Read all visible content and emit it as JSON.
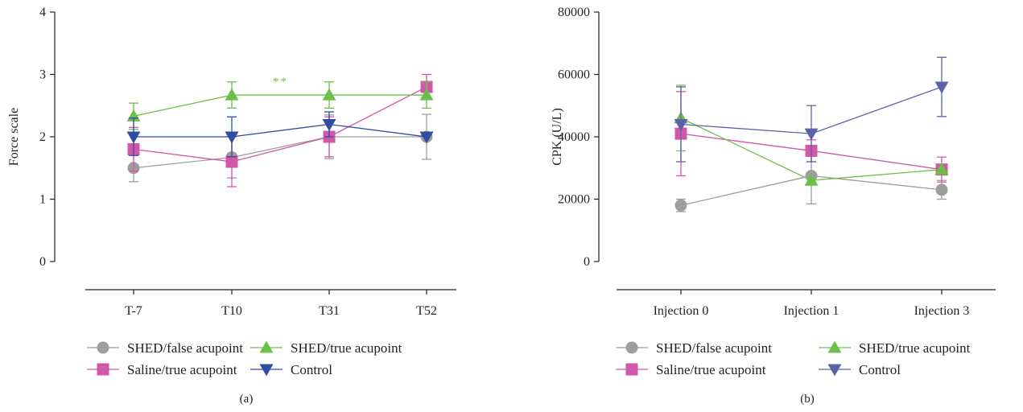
{
  "chart_data": [
    {
      "type": "line",
      "panel_label": "(a)",
      "ylabel": "Force scale",
      "xlabel": "",
      "categories": [
        "T-7",
        "T10",
        "T31",
        "T52"
      ],
      "ylim": [
        0,
        4
      ],
      "yticks": [
        0,
        1,
        2,
        3,
        4
      ],
      "ytick_labels": [
        "0",
        "1",
        "2",
        "3",
        "4"
      ],
      "grid": false,
      "annotations": [
        {
          "text": "**",
          "between": [
            "T10",
            "T31"
          ],
          "y": 2.8,
          "color": "#6cc04a"
        }
      ],
      "series": [
        {
          "name": "SHED/false acupoint",
          "marker": "circle",
          "color": "#9d9d9d",
          "values": [
            1.5,
            1.67,
            2.0,
            2.0
          ],
          "errors": [
            0.22,
            0.33,
            0.35,
            0.36
          ]
        },
        {
          "name": "Saline/true acupoint",
          "marker": "square",
          "color": "#d257a8",
          "values": [
            1.8,
            1.6,
            2.0,
            2.8
          ],
          "errors": [
            0.35,
            0.4,
            0.32,
            0.2
          ]
        },
        {
          "name": "SHED/true acupoint",
          "marker": "triangle-up",
          "color": "#6cc04a",
          "values": [
            2.33,
            2.67,
            2.67,
            2.67
          ],
          "errors": [
            0.21,
            0.21,
            0.21,
            0.21
          ]
        },
        {
          "name": "Control",
          "marker": "triangle-down",
          "color": "#2f4ea2",
          "values": [
            2.0,
            2.0,
            2.2,
            2.0
          ],
          "errors": [
            0.3,
            0.32,
            0.2,
            0.0
          ]
        }
      ]
    },
    {
      "type": "line",
      "panel_label": "(b)",
      "ylabel": "CPK (U/L)",
      "xlabel": "",
      "categories": [
        "Injection 0",
        "Injection 1",
        "Injection 3"
      ],
      "ylim": [
        0,
        80000
      ],
      "yticks": [
        0,
        20000,
        40000,
        60000,
        80000
      ],
      "ytick_labels": [
        "0",
        "20000",
        "40000",
        "60000",
        "80000"
      ],
      "grid": false,
      "series": [
        {
          "name": "SHED/false acupoint",
          "marker": "circle",
          "color": "#9d9d9d",
          "values": [
            18000,
            27500,
            23000
          ],
          "errors": [
            2000,
            9000,
            3000
          ]
        },
        {
          "name": "Saline/true acupoint",
          "marker": "square",
          "color": "#d257a8",
          "values": [
            41000,
            35500,
            29500
          ],
          "errors": [
            13500,
            3500,
            4000
          ]
        },
        {
          "name": "SHED/true acupoint",
          "marker": "triangle-up",
          "color": "#6cc04a",
          "values": [
            46000,
            26000,
            29500
          ],
          "errors": [
            10500,
            0,
            0
          ]
        },
        {
          "name": "Control",
          "marker": "triangle-down",
          "color": "#5b63a8",
          "values": [
            44000,
            41000,
            56000
          ],
          "errors": [
            12000,
            9000,
            9500
          ]
        }
      ]
    }
  ]
}
